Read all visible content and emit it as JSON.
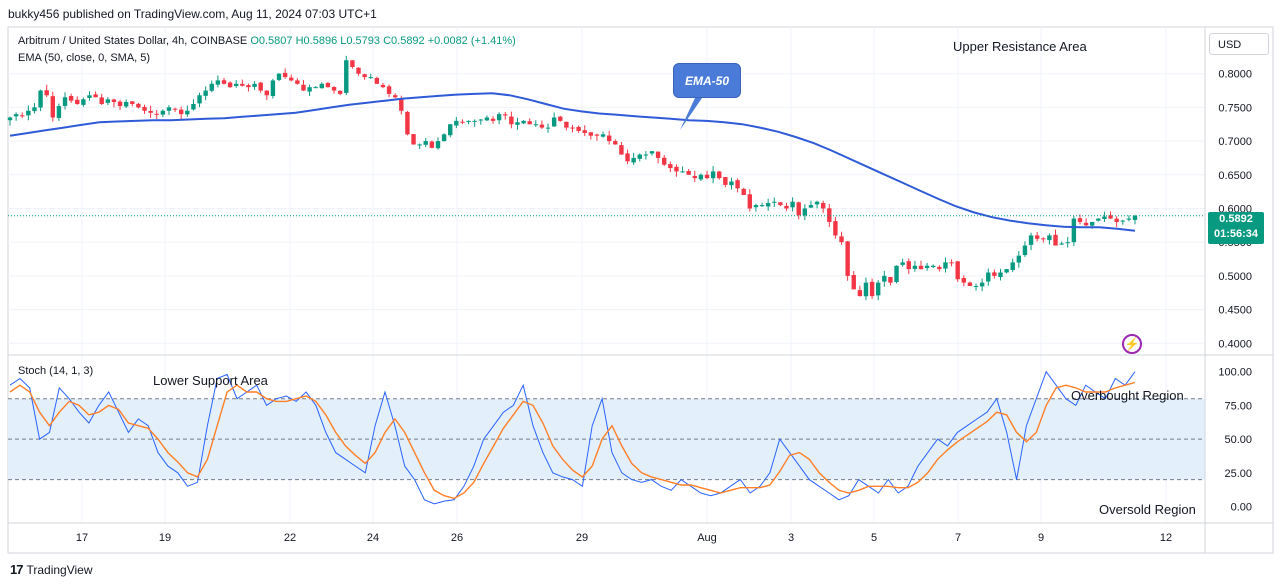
{
  "header": {
    "published": "bukky456 published on TradingView.com, Aug 11, 2024 07:03 UTC+1"
  },
  "legend": {
    "symbol": "Arbitrum / United States Dollar, 4h, COINBASE",
    "o": "O0.5807",
    "h": "H0.5896",
    "l": "L0.5793",
    "c": "C0.5892",
    "change": "+0.0082 (+1.41%)",
    "ema": "EMA (50, close, 0, SMA, 5)",
    "stoch": "Stoch (14, 1, 3)"
  },
  "currency": "USD",
  "price_badge": {
    "price": "0.5892",
    "timer": "01:56:34"
  },
  "annotations": {
    "upper_resistance": "Upper Resistance Area",
    "lower_support": "Lower Support Area",
    "ema_callout": "EMA-50",
    "overbought": "Overbought Region",
    "oversold": "Oversold Region"
  },
  "footer": {
    "brand": "TradingView"
  },
  "colors": {
    "up": "#089981",
    "down": "#f23645",
    "ema": "#2f5ad8",
    "stoch_k": "#2962ff",
    "stoch_d": "#ff7f27",
    "band": "#e3f0fc"
  },
  "chart_data": [
    {
      "type": "candlestick",
      "title": "Arbitrum / United States Dollar, 4h, COINBASE",
      "ylim": [
        0.39,
        0.85
      ],
      "yticks": [
        "0.8000",
        "0.7500",
        "0.7000",
        "0.6500",
        "0.6000",
        "0.5500",
        "0.5000",
        "0.4500",
        "0.4000"
      ],
      "xticks": [
        "17",
        "19",
        "22",
        "24",
        "26",
        "29",
        "Aug",
        "3",
        "5",
        "7",
        "9",
        "12"
      ],
      "last_price": 0.5892,
      "close_series": [
        0.735,
        0.74,
        0.738,
        0.745,
        0.75,
        0.775,
        0.768,
        0.735,
        0.752,
        0.765,
        0.76,
        0.755,
        0.762,
        0.768,
        0.765,
        0.755,
        0.762,
        0.758,
        0.752,
        0.758,
        0.755,
        0.75,
        0.745,
        0.742,
        0.74,
        0.745,
        0.75,
        0.748,
        0.74,
        0.745,
        0.755,
        0.768,
        0.775,
        0.785,
        0.79,
        0.785,
        0.78,
        0.785,
        0.782,
        0.78,
        0.785,
        0.775,
        0.768,
        0.79,
        0.8,
        0.795,
        0.79,
        0.785,
        0.775,
        0.78,
        0.78,
        0.785,
        0.78,
        0.775,
        0.77,
        0.82,
        0.81,
        0.8,
        0.795,
        0.795,
        0.785,
        0.78,
        0.77,
        0.765,
        0.745,
        0.71,
        0.695,
        0.695,
        0.7,
        0.69,
        0.7,
        0.71,
        0.725,
        0.73,
        0.728,
        0.73,
        0.73,
        0.732,
        0.735,
        0.73,
        0.74,
        0.738,
        0.725,
        0.728,
        0.73,
        0.725,
        0.725,
        0.72,
        0.72,
        0.735,
        0.73,
        0.72,
        0.72,
        0.715,
        0.712,
        0.708,
        0.708,
        0.71,
        0.7,
        0.695,
        0.68,
        0.67,
        0.675,
        0.68,
        0.68,
        0.685,
        0.675,
        0.665,
        0.66,
        0.655,
        0.655,
        0.65,
        0.645,
        0.65,
        0.645,
        0.655,
        0.645,
        0.635,
        0.64,
        0.63,
        0.62,
        0.6,
        0.605,
        0.605,
        0.608,
        0.61,
        0.605,
        0.6,
        0.61,
        0.59,
        0.6,
        0.605,
        0.61,
        0.6,
        0.58,
        0.56,
        0.55,
        0.5,
        0.48,
        0.47,
        0.49,
        0.47,
        0.49,
        0.5,
        0.49,
        0.515,
        0.52,
        0.51,
        0.515,
        0.51,
        0.515,
        0.515,
        0.51,
        0.52,
        0.52,
        0.495,
        0.49,
        0.485,
        0.485,
        0.49,
        0.505,
        0.5,
        0.505,
        0.51,
        0.52,
        0.53,
        0.545,
        0.56,
        0.555,
        0.555,
        0.56,
        0.545,
        0.548,
        0.55,
        0.585,
        0.58,
        0.575,
        0.58,
        0.585,
        0.588,
        0.585,
        0.58,
        0.582,
        0.585,
        0.5892
      ],
      "ema_series": [
        0.708,
        0.712,
        0.716,
        0.72,
        0.724,
        0.728,
        0.729,
        0.73,
        0.731,
        0.731,
        0.732,
        0.733,
        0.734,
        0.736,
        0.738,
        0.74,
        0.742,
        0.746,
        0.75,
        0.754,
        0.757,
        0.76,
        0.763,
        0.765,
        0.767,
        0.769,
        0.77,
        0.771,
        0.768,
        0.762,
        0.755,
        0.748,
        0.744,
        0.741,
        0.739,
        0.737,
        0.735,
        0.733,
        0.731,
        0.73,
        0.728,
        0.725,
        0.72,
        0.714,
        0.706,
        0.697,
        0.686,
        0.674,
        0.662,
        0.65,
        0.638,
        0.626,
        0.614,
        0.603,
        0.594,
        0.587,
        0.582,
        0.578,
        0.575,
        0.573,
        0.572,
        0.572,
        0.57,
        0.567
      ]
    },
    {
      "type": "line",
      "title": "Stoch (14, 1, 3)",
      "ylim": [
        -10,
        105
      ],
      "yticks": [
        "100.00",
        "75.00",
        "50.00",
        "25.00",
        "0.00"
      ],
      "levels": [
        80,
        50,
        20
      ],
      "series": [
        {
          "values": [
            90,
            95,
            88,
            50,
            55,
            88,
            80,
            70,
            62,
            75,
            85,
            70,
            55,
            65,
            60,
            40,
            30,
            25,
            15,
            18,
            60,
            95,
            98,
            80,
            85,
            90,
            75,
            80,
            82,
            78,
            85,
            75,
            55,
            40,
            35,
            30,
            25,
            60,
            85,
            60,
            30,
            20,
            5,
            2,
            4,
            5,
            15,
            30,
            50,
            60,
            70,
            75,
            90,
            60,
            40,
            25,
            22,
            20,
            15,
            60,
            80,
            40,
            25,
            20,
            18,
            20,
            15,
            12,
            20,
            15,
            10,
            8,
            10,
            15,
            20,
            10,
            15,
            25,
            50,
            40,
            30,
            20,
            15,
            10,
            5,
            8,
            20,
            15,
            10,
            20,
            10,
            15,
            30,
            40,
            50,
            45,
            55,
            60,
            65,
            70,
            80,
            55,
            20,
            60,
            80,
            100,
            90,
            80,
            75,
            90,
            85,
            80,
            95,
            90,
            100
          ]
        },
        {
          "values": [
            85,
            90,
            85,
            70,
            60,
            70,
            78,
            75,
            68,
            70,
            75,
            72,
            62,
            60,
            58,
            50,
            40,
            33,
            25,
            22,
            35,
            60,
            85,
            90,
            85,
            85,
            80,
            78,
            78,
            80,
            82,
            78,
            68,
            55,
            45,
            38,
            32,
            40,
            55,
            65,
            55,
            40,
            25,
            12,
            8,
            6,
            10,
            18,
            32,
            45,
            58,
            68,
            78,
            75,
            62,
            45,
            35,
            27,
            22,
            30,
            50,
            60,
            45,
            32,
            25,
            22,
            20,
            18,
            16,
            16,
            14,
            12,
            10,
            12,
            14,
            14,
            14,
            16,
            26,
            38,
            40,
            35,
            25,
            18,
            12,
            10,
            12,
            15,
            15,
            15,
            14,
            14,
            18,
            25,
            35,
            42,
            48,
            53,
            58,
            63,
            70,
            68,
            55,
            48,
            55,
            75,
            88,
            90,
            88,
            85,
            85,
            85,
            88,
            90,
            92
          ]
        }
      ]
    }
  ]
}
